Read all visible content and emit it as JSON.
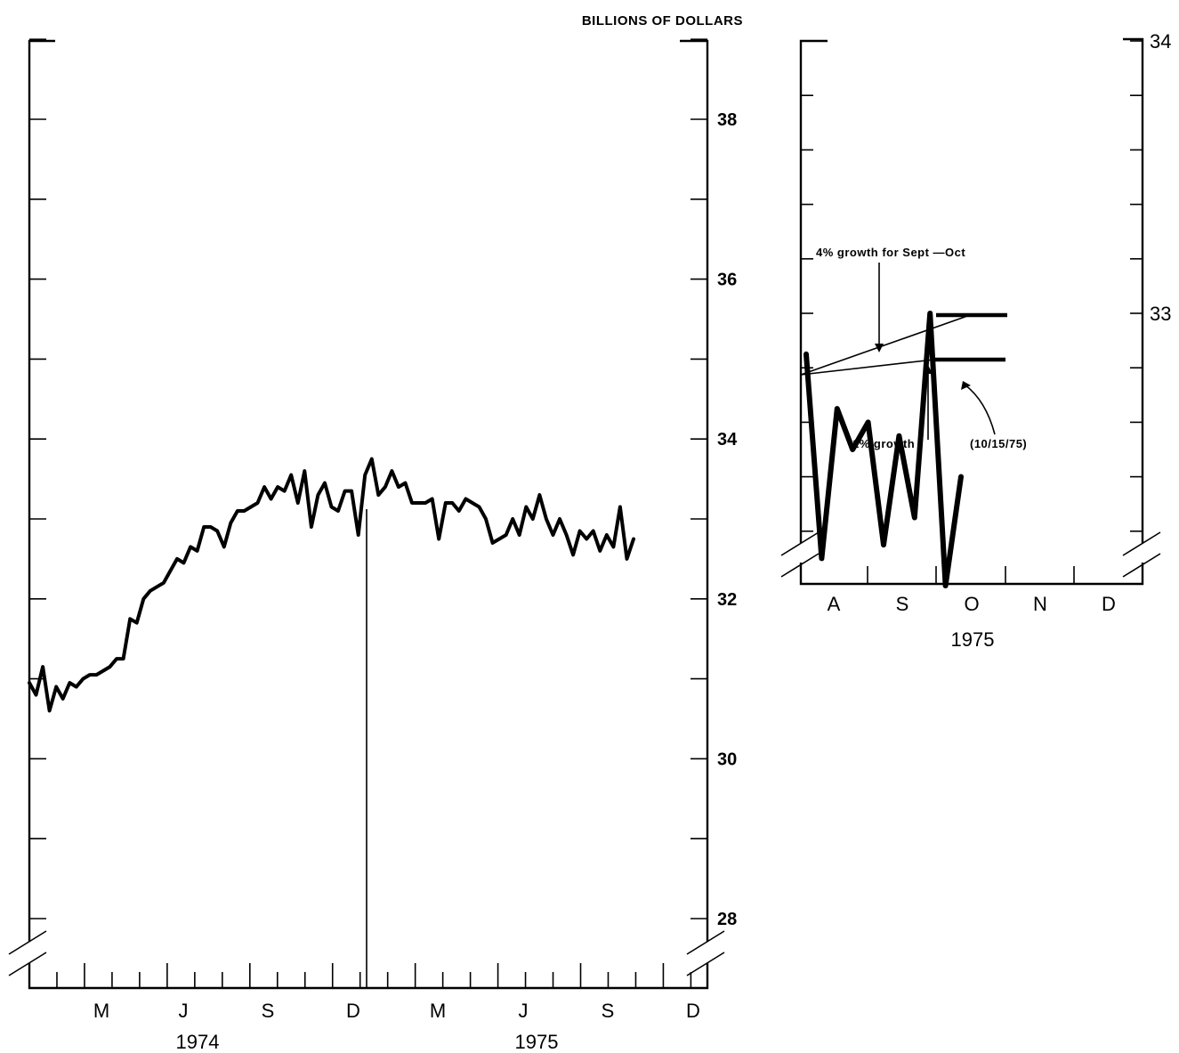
{
  "chart_data": [
    {
      "type": "line",
      "ylabel": "BILLIONS OF DOLLARS",
      "ylim": [
        27,
        39
      ],
      "y_ticks": [
        38,
        36,
        34,
        32,
        30,
        28
      ],
      "x_month_labels": [
        "M",
        "J",
        "S",
        "D",
        "M",
        "J",
        "S",
        "D"
      ],
      "x_year_labels": [
        "1974",
        "1975"
      ],
      "year_divider_at": "Dec 1974",
      "axis_break": true,
      "series": [
        {
          "values": [
            30.95,
            30.8,
            31.15,
            30.6,
            30.9,
            30.75,
            30.95,
            30.9,
            31.0,
            31.05,
            31.05,
            31.1,
            31.15,
            31.25,
            31.25,
            31.75,
            31.7,
            32.0,
            32.1,
            32.15,
            32.2,
            32.35,
            32.5,
            32.45,
            32.65,
            32.6,
            32.9,
            32.9,
            32.85,
            32.65,
            32.95,
            33.1,
            33.1,
            33.15,
            33.2,
            33.4,
            33.25,
            33.4,
            33.35,
            33.55,
            33.2,
            33.6,
            32.9,
            33.3,
            33.45,
            33.15,
            33.1,
            33.35,
            33.35,
            32.8,
            33.55,
            33.75,
            33.3,
            33.4,
            33.6,
            33.4,
            33.45,
            33.2,
            33.2,
            33.2,
            33.25,
            32.75,
            33.2,
            33.2,
            33.1,
            33.25,
            33.2,
            33.15,
            33.0,
            32.7,
            32.75,
            32.8,
            33.0,
            32.8,
            33.15,
            33.0,
            33.3,
            33.0,
            32.8,
            33.0,
            32.8,
            32.55,
            32.85,
            32.75,
            32.85,
            32.6,
            32.8,
            32.65,
            33.15,
            32.5,
            32.75
          ]
        }
      ]
    },
    {
      "type": "line",
      "ylim": [
        32,
        34
      ],
      "y_ticks": [
        34,
        33
      ],
      "x_month_labels": [
        "A",
        "S",
        "O",
        "N",
        "D"
      ],
      "x_year_label": "1975",
      "axis_break": true,
      "series": [
        {
          "values": [
            32.85,
            32.1,
            32.65,
            32.5,
            32.6,
            32.15,
            32.55,
            32.25,
            33.0,
            32.0,
            32.4
          ]
        }
      ],
      "annotations": {
        "growth_4pct": "4% growth for Sept —Oct",
        "growth_1pct": "1% growth",
        "latest_date": "(10/15/75)"
      },
      "target_ranges_end_values": [
        32.97,
        32.72
      ]
    }
  ]
}
